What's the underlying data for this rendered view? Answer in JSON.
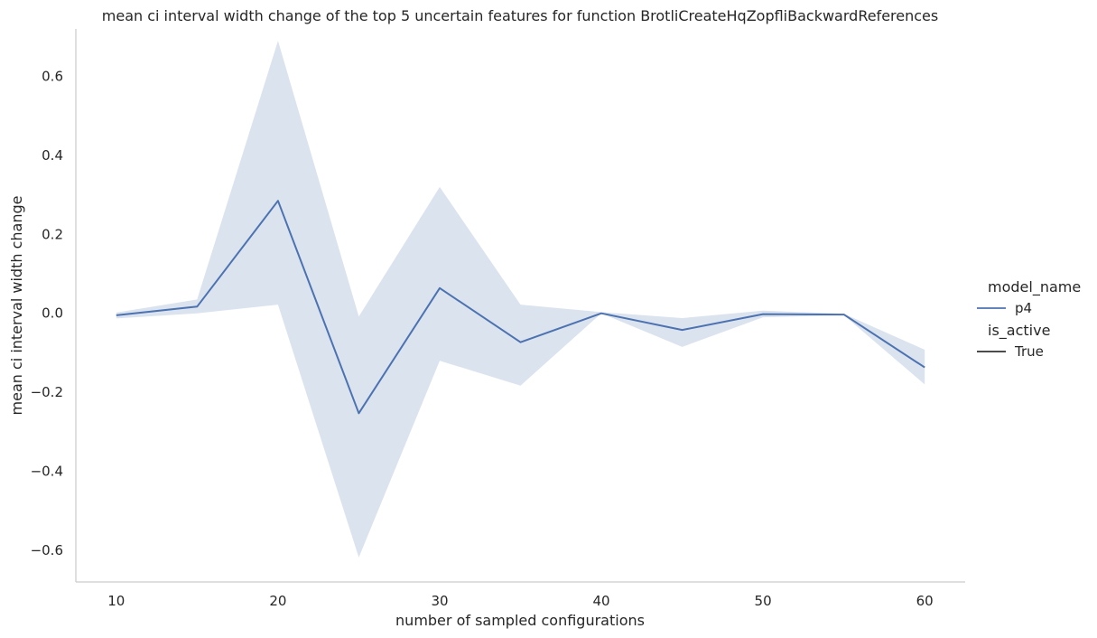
{
  "chart_data": {
    "type": "line",
    "title": "mean ci interval width change of the top 5 uncertain features for function BrotliCreateHqZopfliBackwardReferences",
    "xlabel": "number of sampled configurations",
    "ylabel": "mean ci interval width change",
    "xlim": [
      7.5,
      62.5
    ],
    "ylim": [
      -0.68,
      0.72
    ],
    "xticks": [
      10,
      20,
      30,
      40,
      50,
      60
    ],
    "xtick_labels": [
      "10",
      "20",
      "30",
      "40",
      "50",
      "60"
    ],
    "yticks": [
      -0.6,
      -0.4,
      -0.2,
      0.0,
      0.2,
      0.4,
      0.6
    ],
    "ytick_labels": [
      "−0.6",
      "−0.4",
      "−0.2",
      "0.0",
      "0.2",
      "0.4",
      "0.6"
    ],
    "grid": false,
    "legend": {
      "placement": "right",
      "hue_title": "model_name",
      "hue_entries": [
        {
          "label": "p4",
          "color": "#4c72b0"
        }
      ],
      "style_title": "is_active",
      "style_entries": [
        {
          "label": "True",
          "color": "#333333"
        }
      ]
    },
    "x": [
      10,
      15,
      20,
      25,
      30,
      35,
      40,
      45,
      50,
      55,
      60
    ],
    "series": [
      {
        "name": "p4",
        "color": "#4c72b0",
        "values": [
          -0.005,
          0.017,
          0.285,
          -0.253,
          0.064,
          -0.073,
          0.0,
          -0.042,
          -0.002,
          -0.003,
          -0.137
        ],
        "ci_lower": [
          -0.013,
          0.0,
          0.022,
          -0.618,
          -0.12,
          -0.183,
          0.0,
          -0.085,
          -0.01,
          -0.005,
          -0.18
        ],
        "ci_upper": [
          0.002,
          0.035,
          0.69,
          -0.008,
          0.32,
          0.022,
          0.003,
          -0.012,
          0.007,
          -0.001,
          -0.092
        ]
      }
    ]
  }
}
